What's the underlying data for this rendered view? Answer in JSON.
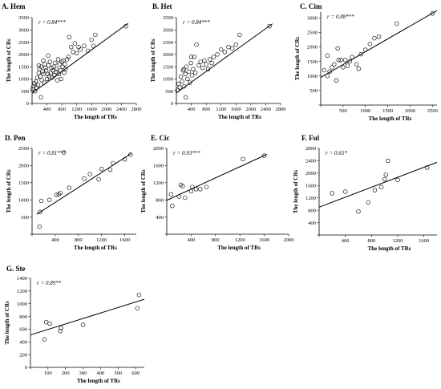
{
  "chart_data": [
    {
      "type": "scatter",
      "title": "A. Hem",
      "annotation": "r = 0.84***",
      "xlabel": "The length of TRs",
      "ylabel": "The length of CRs",
      "xlim": [
        0,
        2800
      ],
      "ylim": [
        0,
        3500
      ],
      "xticks": [
        0,
        400,
        800,
        1200,
        1600,
        2000,
        2400,
        2800
      ],
      "yticks": [
        0,
        500,
        1000,
        1500,
        2000,
        2500,
        3000,
        3500
      ],
      "xtick_labels": [
        "",
        "400",
        "800",
        "1200",
        "1600",
        "2000",
        "2400",
        "2800"
      ],
      "ytick_labels": [
        "0",
        "500",
        "1000",
        "1500",
        "2000",
        "2500",
        "3000",
        "3500"
      ],
      "grid": false,
      "fit_line": {
        "x": [
          0,
          2580
        ],
        "y": [
          420,
          3270
        ]
      },
      "points": [
        [
          20,
          600
        ],
        [
          40,
          700
        ],
        [
          60,
          820
        ],
        [
          80,
          500
        ],
        [
          100,
          900
        ],
        [
          120,
          650
        ],
        [
          140,
          1050
        ],
        [
          160,
          750
        ],
        [
          180,
          1250
        ],
        [
          200,
          1400
        ],
        [
          220,
          1100
        ],
        [
          240,
          1500
        ],
        [
          260,
          950
        ],
        [
          280,
          1300
        ],
        [
          300,
          1200
        ],
        [
          320,
          850
        ],
        [
          340,
          1600
        ],
        [
          360,
          1450
        ],
        [
          380,
          1350
        ],
        [
          400,
          1000
        ],
        [
          240,
          250
        ],
        [
          420,
          1200
        ],
        [
          440,
          1550
        ],
        [
          460,
          1100
        ],
        [
          480,
          1700
        ],
        [
          500,
          1250
        ],
        [
          520,
          1450
        ],
        [
          540,
          1050
        ],
        [
          560,
          1350
        ],
        [
          580,
          1500
        ],
        [
          600,
          1150
        ],
        [
          620,
          1650
        ],
        [
          640,
          1300
        ],
        [
          660,
          1400
        ],
        [
          680,
          950
        ],
        [
          700,
          1800
        ],
        [
          720,
          1200
        ],
        [
          740,
          1600
        ],
        [
          760,
          1350
        ],
        [
          780,
          1000
        ],
        [
          800,
          1700
        ],
        [
          820,
          1500
        ],
        [
          840,
          1750
        ],
        [
          860,
          1250
        ],
        [
          880,
          1600
        ],
        [
          900,
          1400
        ],
        [
          940,
          1800
        ],
        [
          980,
          1900
        ],
        [
          1000,
          2700
        ],
        [
          1050,
          2300
        ],
        [
          1100,
          2100
        ],
        [
          1150,
          2450
        ],
        [
          1200,
          2050
        ],
        [
          1250,
          2300
        ],
        [
          1300,
          2200
        ],
        [
          1400,
          2350
        ],
        [
          1500,
          2150
        ],
        [
          1600,
          2600
        ],
        [
          1650,
          2350
        ],
        [
          1700,
          2800
        ],
        [
          2520,
          3150
        ],
        [
          430,
          1950
        ],
        [
          300,
          1750
        ],
        [
          180,
          1550
        ]
      ]
    },
    {
      "type": "scatter",
      "title": "B. Het",
      "annotation": "r = 0.84***",
      "xlabel": "The length of TRs",
      "ylabel": "The length of CRs",
      "xlim": [
        0,
        2800
      ],
      "ylim": [
        0,
        3500
      ],
      "xticks": [
        0,
        400,
        800,
        1200,
        1600,
        2000,
        2400,
        2800
      ],
      "yticks": [
        0,
        500,
        1000,
        1500,
        2000,
        2500,
        3000,
        3500
      ],
      "xtick_labels": [
        "",
        "400",
        "800",
        "1200",
        "1600",
        "2000",
        "2400",
        "2800"
      ],
      "ytick_labels": [
        "0",
        "500",
        "1000",
        "1500",
        "2000",
        "2500",
        "3000",
        "3500"
      ],
      "grid": false,
      "fit_line": {
        "x": [
          0,
          2580
        ],
        "y": [
          430,
          3250
        ]
      },
      "points": [
        [
          30,
          550
        ],
        [
          60,
          800
        ],
        [
          90,
          650
        ],
        [
          120,
          1100
        ],
        [
          150,
          900
        ],
        [
          180,
          1350
        ],
        [
          210,
          700
        ],
        [
          240,
          1200
        ],
        [
          270,
          1500
        ],
        [
          300,
          1000
        ],
        [
          330,
          1300
        ],
        [
          360,
          850
        ],
        [
          390,
          1650
        ],
        [
          420,
          1150
        ],
        [
          450,
          1400
        ],
        [
          480,
          1900
        ],
        [
          510,
          1250
        ],
        [
          540,
          2400
        ],
        [
          600,
          1550
        ],
        [
          650,
          1700
        ],
        [
          700,
          1450
        ],
        [
          750,
          1750
        ],
        [
          800,
          1600
        ],
        [
          850,
          1400
        ],
        [
          900,
          1800
        ],
        [
          950,
          1650
        ],
        [
          1000,
          1900
        ],
        [
          1100,
          2000
        ],
        [
          1200,
          2200
        ],
        [
          1300,
          2100
        ],
        [
          1400,
          2300
        ],
        [
          1500,
          2250
        ],
        [
          1600,
          2400
        ],
        [
          1700,
          2800
        ],
        [
          2500,
          3150
        ],
        [
          250,
          250
        ],
        [
          400,
          1900
        ],
        [
          200,
          1400
        ]
      ]
    },
    {
      "type": "scatter",
      "title": "C. Cim",
      "annotation": "r = 0.88***",
      "xlabel": "The length of TRs",
      "ylabel": "The length of CRs",
      "xlim": [
        0,
        2600
      ],
      "ylim": [
        0,
        3200
      ],
      "xticks": [
        0,
        500,
        1000,
        1500,
        2000,
        2500
      ],
      "yticks": [
        0,
        500,
        1000,
        1500,
        2000,
        2500,
        3000
      ],
      "xtick_labels": [
        "",
        "500",
        "1000",
        "1500",
        "2000",
        "2500"
      ],
      "ytick_labels": [
        "",
        "500",
        "1000",
        "1500",
        "2000",
        "2500",
        "3000"
      ],
      "grid": false,
      "fit_line": {
        "x": [
          0,
          2600
        ],
        "y": [
          950,
          3250
        ]
      },
      "points": [
        [
          80,
          1200
        ],
        [
          150,
          1000
        ],
        [
          200,
          1150
        ],
        [
          250,
          1300
        ],
        [
          300,
          1400
        ],
        [
          380,
          1950
        ],
        [
          400,
          1550
        ],
        [
          450,
          1550
        ],
        [
          500,
          1300
        ],
        [
          550,
          1550
        ],
        [
          600,
          1350
        ],
        [
          650,
          1500
        ],
        [
          700,
          1650
        ],
        [
          800,
          1400
        ],
        [
          850,
          1250
        ],
        [
          900,
          1750
        ],
        [
          1000,
          1900
        ],
        [
          1100,
          2100
        ],
        [
          1200,
          2300
        ],
        [
          1300,
          2350
        ],
        [
          1700,
          2800
        ],
        [
          2500,
          3150
        ],
        [
          150,
          1700
        ],
        [
          350,
          850
        ]
      ]
    },
    {
      "type": "scatter",
      "title": "D. Pen",
      "annotation": "r = 0.81***",
      "xlabel": "The length of TRs",
      "ylabel": "The length of CRs",
      "xlim": [
        0,
        1800
      ],
      "ylim": [
        0,
        2500
      ],
      "xticks": [
        0,
        400,
        800,
        1200,
        1600
      ],
      "yticks": [
        0,
        500,
        1000,
        1500,
        2000,
        2500
      ],
      "xtick_labels": [
        "",
        "400",
        "800",
        "1200",
        "1600"
      ],
      "ytick_labels": [
        "",
        "500",
        "1000",
        "1500",
        "2000",
        "2500"
      ],
      "grid": false,
      "fit_line": {
        "x": [
          80,
          1710
        ],
        "y": [
          580,
          2350
        ]
      },
      "points": [
        [
          130,
          220
        ],
        [
          140,
          650
        ],
        [
          160,
          970
        ],
        [
          300,
          1000
        ],
        [
          420,
          1150
        ],
        [
          460,
          1160
        ],
        [
          490,
          1200
        ],
        [
          550,
          2380
        ],
        [
          640,
          1350
        ],
        [
          900,
          1620
        ],
        [
          1000,
          1750
        ],
        [
          1150,
          1600
        ],
        [
          1200,
          1900
        ],
        [
          1350,
          1880
        ],
        [
          1400,
          2070
        ],
        [
          1600,
          2180
        ],
        [
          1700,
          2320
        ]
      ]
    },
    {
      "type": "scatter",
      "title": "E. Cic",
      "annotation": "r = 0.93***",
      "xlabel": "The length of TRs",
      "ylabel": "The length of CRs",
      "xlim": [
        0,
        2000
      ],
      "ylim": [
        0,
        2000
      ],
      "xticks": [
        0,
        400,
        800,
        1200,
        1600,
        2000
      ],
      "yticks": [
        0,
        400,
        800,
        1200,
        1600,
        2000
      ],
      "xtick_labels": [
        "",
        "400",
        "800",
        "1200",
        "1600",
        "2000"
      ],
      "ytick_labels": [
        "",
        "400",
        "800",
        "1200",
        "1600",
        "2000"
      ],
      "grid": false,
      "fit_line": {
        "x": [
          0,
          1640
        ],
        "y": [
          790,
          1860
        ]
      },
      "points": [
        [
          70,
          930
        ],
        [
          90,
          660
        ],
        [
          200,
          880
        ],
        [
          230,
          1150
        ],
        [
          260,
          1120
        ],
        [
          300,
          850
        ],
        [
          400,
          1000
        ],
        [
          420,
          1100
        ],
        [
          480,
          1050
        ],
        [
          550,
          1050
        ],
        [
          650,
          1100
        ],
        [
          1250,
          1750
        ],
        [
          1600,
          1830
        ]
      ]
    },
    {
      "type": "scatter",
      "title": "F. Ful",
      "annotation": "r = 0.65*",
      "xlabel": "The length of TRs",
      "ylabel": "The length of CRs",
      "xlim": [
        0,
        1800
      ],
      "ylim": [
        0,
        2800
      ],
      "xticks": [
        0,
        400,
        800,
        1200,
        1600
      ],
      "yticks": [
        0,
        400,
        800,
        1200,
        1600,
        2000,
        2400,
        2800
      ],
      "xtick_labels": [
        "",
        "400",
        "800",
        "1200",
        "1600"
      ],
      "ytick_labels": [
        "",
        "400",
        "800",
        "1200",
        "1600",
        "2000",
        "2400",
        "2800"
      ],
      "grid": false,
      "fit_line": {
        "x": [
          0,
          1800
        ],
        "y": [
          900,
          2350
        ]
      },
      "points": [
        [
          200,
          1350
        ],
        [
          400,
          1400
        ],
        [
          600,
          760
        ],
        [
          750,
          1050
        ],
        [
          850,
          1450
        ],
        [
          950,
          1550
        ],
        [
          1000,
          1800
        ],
        [
          1020,
          1950
        ],
        [
          1050,
          2400
        ],
        [
          1200,
          1780
        ],
        [
          1650,
          2180
        ]
      ]
    },
    {
      "type": "scatter",
      "title": "G. Ste",
      "annotation": "r = 0.89**",
      "xlabel": "The length of TRs",
      "ylabel": "The length of CRs",
      "xlim": [
        0,
        650
      ],
      "ylim": [
        0,
        1400
      ],
      "xticks": [
        0,
        100,
        200,
        300,
        400,
        500,
        600
      ],
      "yticks": [
        0,
        200,
        400,
        600,
        800,
        1000,
        1200,
        1400
      ],
      "xtick_labels": [
        "",
        "100",
        "200",
        "300",
        "400",
        "500",
        "600"
      ],
      "ytick_labels": [
        "0",
        "200",
        "400",
        "600",
        "800",
        "1000",
        "1200",
        "1400"
      ],
      "grid": false,
      "fit_line": {
        "x": [
          0,
          650
        ],
        "y": [
          510,
          1070
        ]
      },
      "points": [
        [
          80,
          440
        ],
        [
          90,
          710
        ],
        [
          110,
          690
        ],
        [
          170,
          570
        ],
        [
          175,
          620
        ],
        [
          300,
          670
        ],
        [
          610,
          930
        ],
        [
          620,
          1140
        ]
      ]
    }
  ]
}
